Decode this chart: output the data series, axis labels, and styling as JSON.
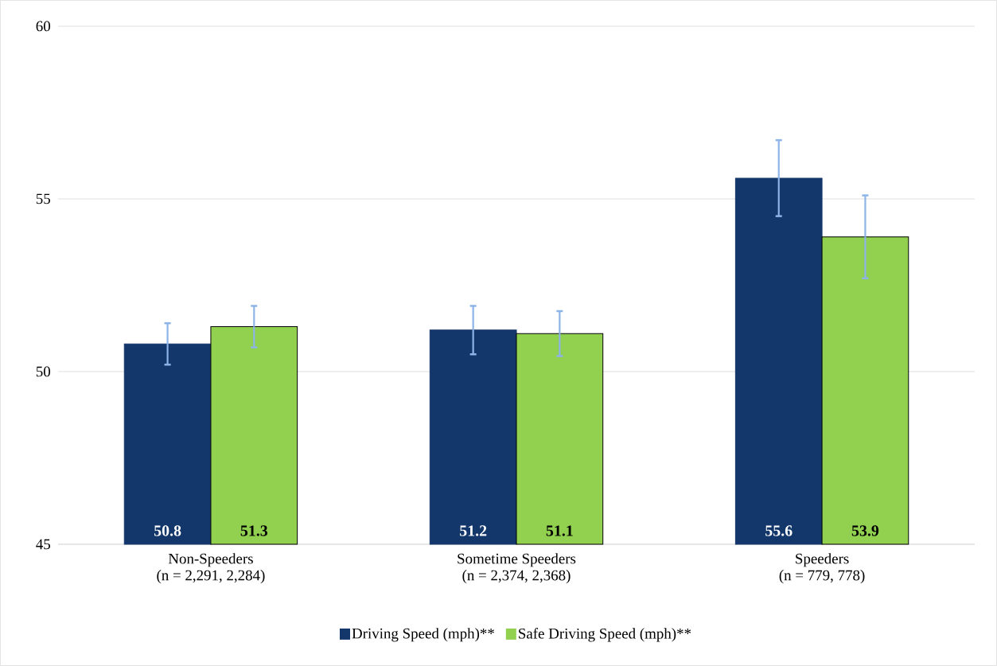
{
  "chart_data": {
    "type": "bar",
    "categories": [
      "Non-Speeders\n(n = 2,291, 2,284)",
      "Sometime Speeders\n(n = 2,374, 2,368)",
      "Speeders\n(n = 779, 778)"
    ],
    "series": [
      {
        "name": "Driving Speed (mph)**",
        "color": "#14376b",
        "values": [
          50.8,
          51.2,
          55.6
        ],
        "errors": [
          0.6,
          0.7,
          1.1
        ]
      },
      {
        "name": "Safe Driving Speed (mph)**",
        "color": "#92d050",
        "values": [
          51.3,
          51.1,
          53.9
        ],
        "errors": [
          0.6,
          0.65,
          1.2
        ]
      }
    ],
    "ylim": [
      45,
      60
    ],
    "yticks": [
      45,
      50,
      55,
      60
    ],
    "grid": "y",
    "legend": "bottom",
    "data_labels": true
  }
}
